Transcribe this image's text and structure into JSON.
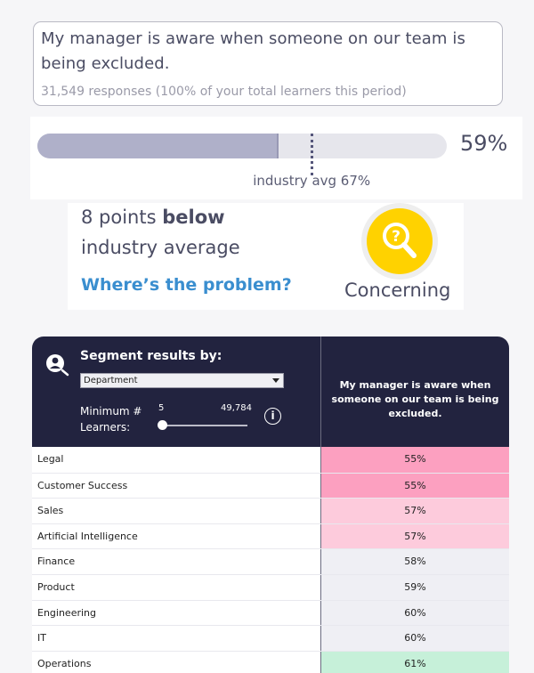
{
  "question": {
    "text": "My manager is aware when someone on our team is being excluded.",
    "responses": "31,549 responses (100% of your total learners this period)"
  },
  "score": {
    "value_label": "59%",
    "value": 59,
    "industry_avg": 67,
    "industry_label": "industry avg 67%"
  },
  "summary": {
    "line1_prefix": "8 points ",
    "line1_bold": "below",
    "line2": "industry average",
    "link": "Where’s the problem?",
    "status": "Concerning",
    "status_icon": "magnifier-question-icon",
    "status_color": "#ffd200"
  },
  "segment": {
    "title": "Segment results by:",
    "selected": "Department",
    "min_label_line1": "Minimum #",
    "min_label_line2": "Learners:",
    "slider_min": "5",
    "slider_max": "49,784",
    "info": "i",
    "column_header": "My manager is aware when someone on our team is being excluded.",
    "rows": [
      {
        "label": "Legal",
        "value": "55%",
        "color": "#fca0c0"
      },
      {
        "label": "Customer Success",
        "value": "55%",
        "color": "#fca0c0"
      },
      {
        "label": "Sales",
        "value": "57%",
        "color": "#fdcbdc"
      },
      {
        "label": "Artificial Intelligence",
        "value": "57%",
        "color": "#fdcbdc"
      },
      {
        "label": "Finance",
        "value": "58%",
        "color": "#efeff4"
      },
      {
        "label": "Product",
        "value": "59%",
        "color": "#efeff4"
      },
      {
        "label": "Engineering",
        "value": "60%",
        "color": "#efeff4"
      },
      {
        "label": "IT",
        "value": "60%",
        "color": "#efeff4"
      },
      {
        "label": "Operations",
        "value": "61%",
        "color": "#c6f0d9"
      }
    ]
  }
}
